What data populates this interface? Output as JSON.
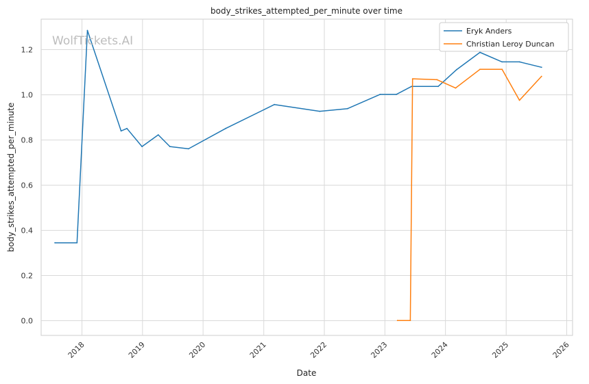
{
  "chart_data": {
    "type": "line",
    "title": "body_strikes_attempted_per_minute over time",
    "xlabel": "Date",
    "ylabel": "body_strikes_attempted_per_minute",
    "watermark": "WolfTickets.AI",
    "grid": true,
    "legend_position": "top-right",
    "x_ticks": [
      "2018",
      "2019",
      "2020",
      "2021",
      "2022",
      "2023",
      "2024",
      "2025",
      "2026"
    ],
    "y_ticks": [
      "0.0",
      "0.2",
      "0.4",
      "0.6",
      "0.8",
      "1.0",
      "1.2"
    ],
    "xlim": [
      "2017-04-30",
      "2026-02-05"
    ],
    "ylim": [
      -0.065,
      1.335
    ],
    "series": [
      {
        "name": "Eryk Anders",
        "color": "#1f77b4",
        "points": [
          [
            "2017-07-22",
            0.345
          ],
          [
            "2017-12-02",
            0.345
          ],
          [
            "2018-02-03",
            1.285
          ],
          [
            "2018-08-25",
            0.84
          ],
          [
            "2018-09-29",
            0.851
          ],
          [
            "2018-12-29",
            0.771
          ],
          [
            "2019-04-06",
            0.823
          ],
          [
            "2019-06-15",
            0.771
          ],
          [
            "2019-10-05",
            0.761
          ],
          [
            "2020-05-16",
            0.851
          ],
          [
            "2021-03-06",
            0.957
          ],
          [
            "2021-12-04",
            0.927
          ],
          [
            "2022-05-21",
            0.939
          ],
          [
            "2022-12-03",
            1.002
          ],
          [
            "2023-03-11",
            1.002
          ],
          [
            "2023-06-10",
            1.037
          ],
          [
            "2023-11-18",
            1.037
          ],
          [
            "2024-03-09",
            1.112
          ],
          [
            "2024-07-27",
            1.188
          ],
          [
            "2024-12-07",
            1.146
          ],
          [
            "2025-03-22",
            1.146
          ],
          [
            "2025-08-02",
            1.122
          ]
        ]
      },
      {
        "name": "Christian Leroy Duncan",
        "color": "#ff7f0e",
        "points": [
          [
            "2023-03-18",
            0.001
          ],
          [
            "2023-06-03",
            0.001
          ],
          [
            "2023-06-17",
            1.071
          ],
          [
            "2023-11-11",
            1.067
          ],
          [
            "2024-03-02",
            1.03
          ],
          [
            "2024-07-27",
            1.113
          ],
          [
            "2024-12-07",
            1.113
          ],
          [
            "2025-03-22",
            0.976
          ],
          [
            "2025-08-02",
            1.082
          ]
        ]
      }
    ]
  }
}
